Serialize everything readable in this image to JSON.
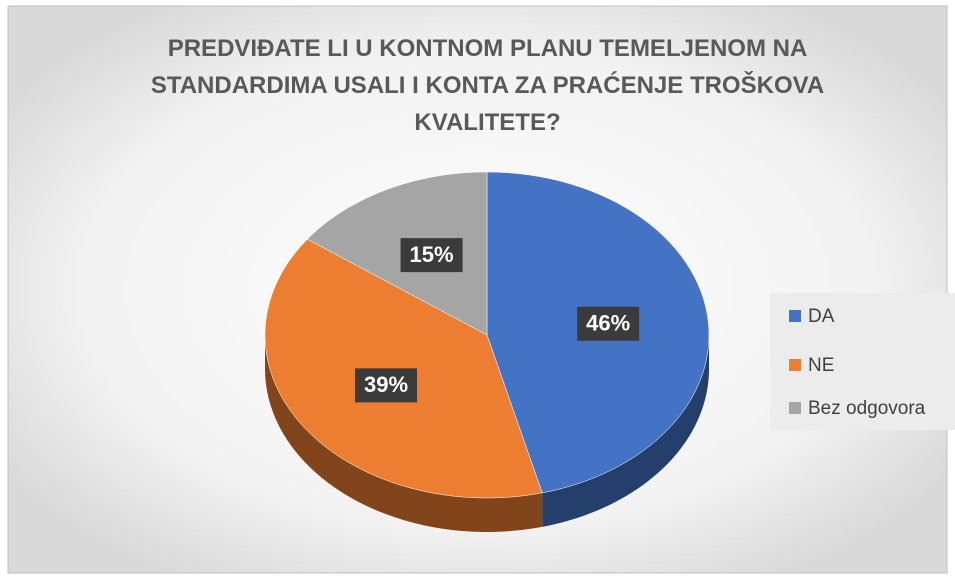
{
  "chart_data": {
    "type": "pie",
    "title": "PREDVIĐATE LI U KONTNOM PLANU TEMELJENOM NA STANDARDIMA USALI I KONTA ZA PRAĆENJE TROŠKOVA KVALITETE?",
    "categories": [
      "DA",
      "NE",
      "Bez odgovora"
    ],
    "values": [
      46,
      39,
      15
    ],
    "value_labels": [
      "46%",
      "39%",
      "15%"
    ],
    "colors": [
      "#4472c4",
      "#ed7d31",
      "#a5a5a5"
    ],
    "legend": "right"
  }
}
